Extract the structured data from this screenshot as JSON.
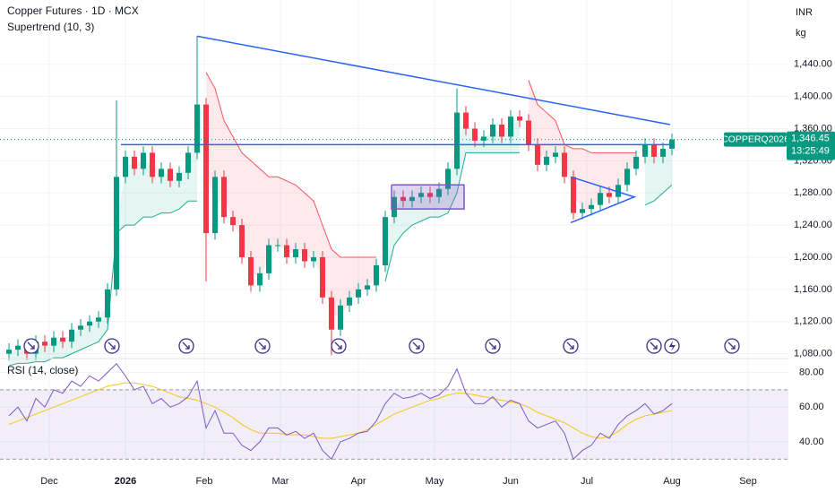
{
  "chart_data": {
    "type": "candlestick",
    "title": "Copper Futures · 1D · MCX",
    "indicator": "Supertrend (10, 3)",
    "currency": "INR",
    "unit": "kg",
    "xlim": [
      -1,
      87
    ],
    "xticks": [
      {
        "value": 4.5,
        "label": "Dec"
      },
      {
        "value": 13,
        "label": "2026"
      },
      {
        "value": 21.8,
        "label": "Feb"
      },
      {
        "value": 30.3,
        "label": "Mar"
      },
      {
        "value": 39,
        "label": "Apr"
      },
      {
        "value": 47.5,
        "label": "May"
      },
      {
        "value": 56,
        "label": "Jun"
      },
      {
        "value": 64.5,
        "label": "Jul"
      },
      {
        "value": 74,
        "label": "Aug"
      },
      {
        "value": 82.5,
        "label": "Sep"
      }
    ],
    "ylim": [
      1074,
      1520
    ],
    "yticks": [
      {
        "value": 1440,
        "label": "1,440.00"
      },
      {
        "value": 1400,
        "label": "1,400.00"
      },
      {
        "value": 1360,
        "label": "1,360.00"
      },
      {
        "value": 1320,
        "label": "1,320.00"
      },
      {
        "value": 1280,
        "label": "1,280.00"
      },
      {
        "value": 1240,
        "label": "1,240.00"
      },
      {
        "value": 1200,
        "label": "1,200.00"
      },
      {
        "value": 1160,
        "label": "1,160.00"
      },
      {
        "value": 1120,
        "label": "1,120.00"
      },
      {
        "value": 1080,
        "label": "1,080.00"
      }
    ],
    "up_color": "#089981",
    "down_color": "#f23645",
    "open": [
      1080,
      1085,
      1090,
      1080,
      1095,
      1090,
      1100,
      1095,
      1110,
      1115,
      1120,
      1125,
      1160,
      1300,
      1325,
      1310,
      1330,
      1300,
      1310,
      1295,
      1305,
      1330,
      1390,
      1230,
      1300,
      1250,
      1240,
      1200,
      1165,
      1180,
      1215,
      1215,
      1200,
      1210,
      1195,
      1200,
      1150,
      1110,
      1140,
      1150,
      1160,
      1165,
      1190,
      1250,
      1275,
      1270,
      1275,
      1280,
      1275,
      1285,
      1310,
      1380,
      1360,
      1345,
      1350,
      1365,
      1350,
      1375,
      1370,
      1340,
      1315,
      1325,
      1330,
      1300,
      1255,
      1260,
      1265,
      1280,
      1275,
      1290,
      1310,
      1325,
      1340,
      1325,
      1335
    ],
    "high": [
      1093,
      1098,
      1098,
      1103,
      1103,
      1108,
      1108,
      1118,
      1123,
      1128,
      1133,
      1168,
      1395,
      1333,
      1333,
      1338,
      1338,
      1318,
      1318,
      1313,
      1338,
      1475,
      1398,
      1308,
      1308,
      1258,
      1248,
      1208,
      1188,
      1223,
      1223,
      1223,
      1218,
      1218,
      1208,
      1208,
      1158,
      1148,
      1158,
      1168,
      1173,
      1198,
      1258,
      1283,
      1283,
      1283,
      1288,
      1288,
      1293,
      1318,
      1410,
      1388,
      1368,
      1358,
      1373,
      1373,
      1383,
      1383,
      1378,
      1348,
      1333,
      1338,
      1338,
      1308,
      1268,
      1273,
      1288,
      1288,
      1298,
      1318,
      1333,
      1348,
      1348,
      1343,
      1354
    ],
    "low": [
      1072,
      1077,
      1072,
      1072,
      1082,
      1082,
      1087,
      1087,
      1102,
      1107,
      1112,
      1117,
      1152,
      1292,
      1302,
      1302,
      1292,
      1292,
      1287,
      1287,
      1297,
      1322,
      1170,
      1222,
      1242,
      1232,
      1192,
      1157,
      1157,
      1172,
      1207,
      1192,
      1192,
      1187,
      1187,
      1142,
      1078,
      1102,
      1132,
      1142,
      1152,
      1157,
      1182,
      1242,
      1262,
      1262,
      1267,
      1267,
      1267,
      1277,
      1302,
      1352,
      1337,
      1337,
      1342,
      1342,
      1342,
      1362,
      1332,
      1307,
      1307,
      1317,
      1292,
      1247,
      1247,
      1252,
      1257,
      1267,
      1267,
      1282,
      1302,
      1317,
      1317,
      1317,
      1327
    ],
    "close": [
      1085,
      1090,
      1080,
      1095,
      1090,
      1100,
      1095,
      1110,
      1115,
      1120,
      1125,
      1160,
      1300,
      1325,
      1310,
      1330,
      1300,
      1310,
      1295,
      1305,
      1330,
      1390,
      1230,
      1300,
      1250,
      1240,
      1200,
      1165,
      1180,
      1215,
      1215,
      1200,
      1210,
      1195,
      1200,
      1150,
      1110,
      1140,
      1150,
      1160,
      1165,
      1190,
      1250,
      1275,
      1270,
      1275,
      1280,
      1275,
      1285,
      1310,
      1380,
      1360,
      1345,
      1350,
      1365,
      1350,
      1375,
      1370,
      1340,
      1315,
      1325,
      1330,
      1300,
      1255,
      1260,
      1265,
      1280,
      1275,
      1290,
      1310,
      1325,
      1340,
      1325,
      1335,
      1346.45
    ],
    "supertrend": {
      "up_color": "#22ab94",
      "down_color": "#f7525f",
      "up": [
        1065,
        1068,
        1068,
        1070,
        1070,
        1075,
        1075,
        1080,
        1085,
        1090,
        1095,
        1110,
        1230,
        1240,
        1240,
        1250,
        1250,
        1255,
        1255,
        1260,
        1270,
        1270,
        null,
        null,
        null,
        null,
        null,
        null,
        null,
        null,
        null,
        null,
        null,
        null,
        null,
        null,
        null,
        null,
        null,
        null,
        null,
        null,
        1170,
        1215,
        1230,
        1240,
        1245,
        1250,
        1250,
        1255,
        1280,
        1330,
        1330,
        1330,
        1330,
        1330,
        1330,
        1330,
        null,
        null,
        null,
        null,
        null,
        null,
        null,
        null,
        null,
        null,
        null,
        null,
        null,
        1265,
        1270,
        1280,
        1290
      ],
      "down": [
        null,
        null,
        null,
        null,
        null,
        null,
        null,
        null,
        null,
        null,
        null,
        null,
        null,
        null,
        null,
        null,
        null,
        null,
        null,
        null,
        null,
        null,
        1430,
        1410,
        1370,
        1350,
        1330,
        1320,
        1310,
        1300,
        1300,
        1295,
        1290,
        1280,
        1270,
        1240,
        1210,
        1200,
        1200,
        1200,
        1200,
        1200,
        null,
        null,
        null,
        null,
        null,
        null,
        null,
        null,
        null,
        null,
        null,
        null,
        null,
        null,
        null,
        null,
        1420,
        1390,
        1380,
        1370,
        1340,
        1335,
        1335,
        1330,
        1330,
        1330,
        1330,
        1330,
        1330,
        null,
        null,
        null,
        null
      ]
    },
    "drawings": [
      {
        "color": "#2962ff",
        "points": [
          [
            21,
            1475
          ],
          [
            73.8,
            1365
          ]
        ]
      },
      {
        "color": "#2962ff",
        "points": [
          [
            12.5,
            1340
          ],
          [
            74,
            1340
          ]
        ]
      },
      {
        "color": "#2962ff",
        "points": [
          [
            62.7,
            1300
          ],
          [
            69.8,
            1275
          ],
          [
            62.7,
            1243
          ]
        ]
      },
      {
        "color": "#7e57c2",
        "fill": "rgba(126,87,194,0.25)",
        "points": [
          [
            42.7,
            1290
          ],
          [
            50.8,
            1290
          ],
          [
            50.8,
            1260
          ],
          [
            42.7,
            1260
          ],
          [
            42.7,
            1290
          ]
        ]
      }
    ],
    "price_tag": {
      "symbol": "COPPERQ2026",
      "price": "1,346.45",
      "countdown": "13:25:49"
    },
    "rsi": {
      "title": "RSI (14, close)",
      "color": "#7e57c2",
      "ma_color": "#f5c518",
      "ylim": [
        26,
        88
      ],
      "yticks": [
        {
          "value": 80,
          "label": "80.00"
        },
        {
          "value": 60,
          "label": "60.00"
        },
        {
          "value": 40,
          "label": "40.00"
        }
      ],
      "bands": [
        70,
        30
      ],
      "values": [
        55,
        60,
        52,
        65,
        60,
        70,
        68,
        75,
        72,
        78,
        75,
        80,
        85,
        78,
        70,
        72,
        62,
        65,
        60,
        62,
        66,
        75,
        48,
        58,
        45,
        45,
        38,
        35,
        40,
        48,
        48,
        44,
        46,
        42,
        45,
        35,
        30,
        40,
        42,
        45,
        46,
        52,
        62,
        68,
        65,
        66,
        68,
        65,
        67,
        72,
        82,
        68,
        62,
        62,
        66,
        60,
        64,
        62,
        52,
        48,
        50,
        52,
        45,
        30,
        35,
        38,
        45,
        42,
        50,
        55,
        58,
        62,
        56,
        58,
        62
      ],
      "ma": [
        50,
        52,
        54,
        56,
        58,
        60,
        62,
        64,
        66,
        68,
        70,
        72,
        73,
        74,
        74,
        73,
        72,
        70,
        68,
        66,
        65,
        64,
        62,
        60,
        57,
        54,
        50,
        47,
        45,
        45,
        45,
        44,
        44,
        44,
        43,
        42,
        42,
        43,
        44,
        45,
        47,
        50,
        53,
        56,
        58,
        60,
        62,
        64,
        65,
        67,
        68,
        68,
        67,
        66,
        65,
        64,
        63,
        62,
        60,
        57,
        55,
        53,
        51,
        48,
        45,
        43,
        42,
        43,
        46,
        50,
        53,
        55,
        56,
        57,
        58
      ]
    }
  }
}
